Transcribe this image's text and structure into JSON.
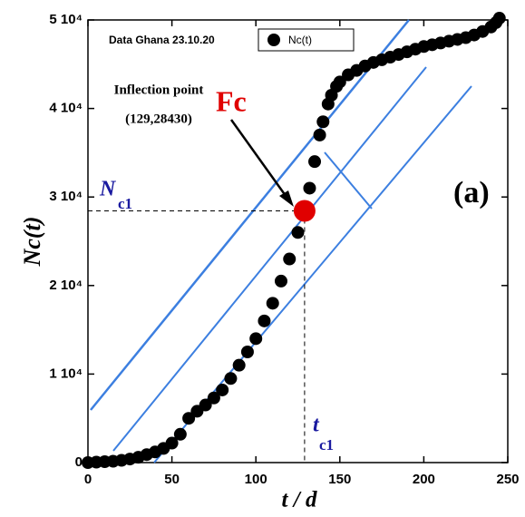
{
  "chart_data": {
    "type": "scatter",
    "x_label": "t / d",
    "y_label": "Nc(t)",
    "note": "Data Ghana 23.10.20",
    "panel_label": "(a)",
    "inflection_point": {
      "title": "Inflection point",
      "coords": "(129,28430)",
      "mark_label": "Fc",
      "x": 129,
      "y": 28430,
      "color": "#e00000"
    },
    "n_label": "N",
    "n_sub": "c1",
    "t_label": "t",
    "t_sub": "c1",
    "series": [
      {
        "name": "Nc(t)",
        "color": "#000000",
        "x": [
          0,
          5,
          10,
          15,
          20,
          25,
          30,
          35,
          40,
          45,
          50,
          55,
          60,
          65,
          70,
          75,
          80,
          85,
          90,
          95,
          100,
          105,
          110,
          115,
          120,
          125,
          129,
          132,
          135,
          138,
          140,
          143,
          145,
          148,
          150,
          155,
          160,
          165,
          170,
          175,
          180,
          185,
          190,
          195,
          200,
          205,
          210,
          215,
          220,
          225,
          230,
          235,
          240,
          243,
          245
        ],
        "values": [
          0,
          50,
          100,
          150,
          250,
          400,
          600,
          900,
          1200,
          1600,
          2200,
          3200,
          5000,
          5800,
          6500,
          7300,
          8200,
          9500,
          11000,
          12500,
          14000,
          16000,
          18000,
          20500,
          23000,
          26000,
          28430,
          31000,
          34000,
          37000,
          38500,
          40500,
          41500,
          42500,
          43000,
          43800,
          44300,
          44800,
          45200,
          45500,
          45800,
          46100,
          46400,
          46700,
          47000,
          47200,
          47400,
          47600,
          47800,
          48000,
          48300,
          48700,
          49200,
          49700,
          50200
        ]
      }
    ],
    "xlim": [
      0,
      250
    ],
    "ylim": [
      0,
      50000
    ],
    "xticks": [
      0,
      50,
      100,
      150,
      200,
      250
    ],
    "yticks": [
      0,
      {
        "value": 10000,
        "label": "1 10⁴"
      },
      {
        "value": 20000,
        "label": "2 10⁴"
      },
      {
        "value": 30000,
        "label": "3 10⁴"
      },
      {
        "value": 40000,
        "label": "4 10⁴"
      },
      {
        "value": 50000,
        "label": "5 10⁴"
      }
    ],
    "line_color": "#3c7fe0"
  }
}
